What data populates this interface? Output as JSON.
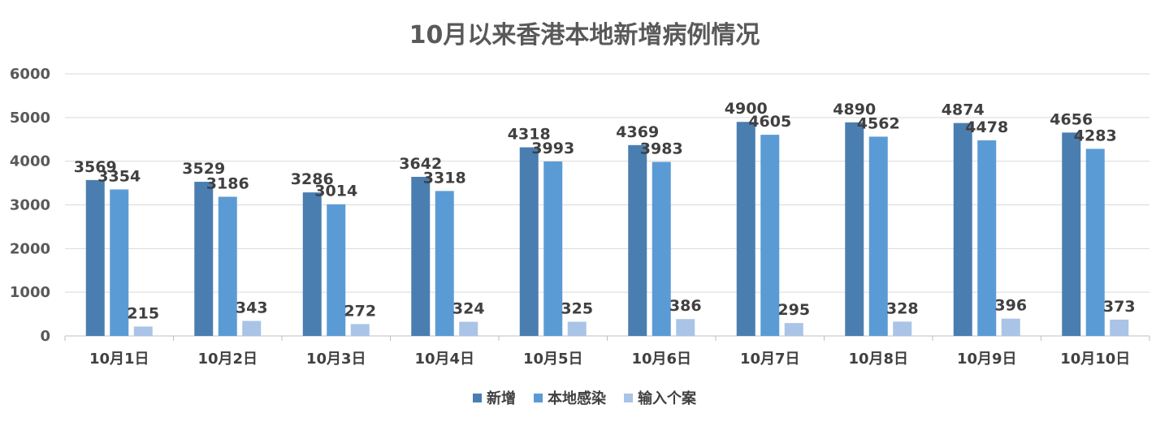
{
  "chart_data": {
    "type": "bar",
    "title": "10月以来香港本地新增病例情况",
    "categories": [
      "10月1日",
      "10月2日",
      "10月3日",
      "10月4日",
      "10月5日",
      "10月6日",
      "10月7日",
      "10月8日",
      "10月9日",
      "10月10日"
    ],
    "series": [
      {
        "name": "新增",
        "color": "#4a7eb1",
        "values": [
          3569,
          3529,
          3286,
          3642,
          4318,
          4369,
          4900,
          4890,
          4874,
          4656
        ]
      },
      {
        "name": "本地感染",
        "color": "#5b9bd5",
        "values": [
          3354,
          3186,
          3014,
          3318,
          3993,
          3983,
          4605,
          4562,
          4478,
          4283
        ]
      },
      {
        "name": "输入个案",
        "color": "#a9c4e6",
        "values": [
          215,
          343,
          272,
          324,
          325,
          386,
          295,
          328,
          396,
          373
        ]
      }
    ],
    "ylim": [
      0,
      6000
    ],
    "yticks": [
      0,
      1000,
      2000,
      3000,
      4000,
      5000,
      6000
    ],
    "grid": true,
    "legend": "bottom"
  }
}
